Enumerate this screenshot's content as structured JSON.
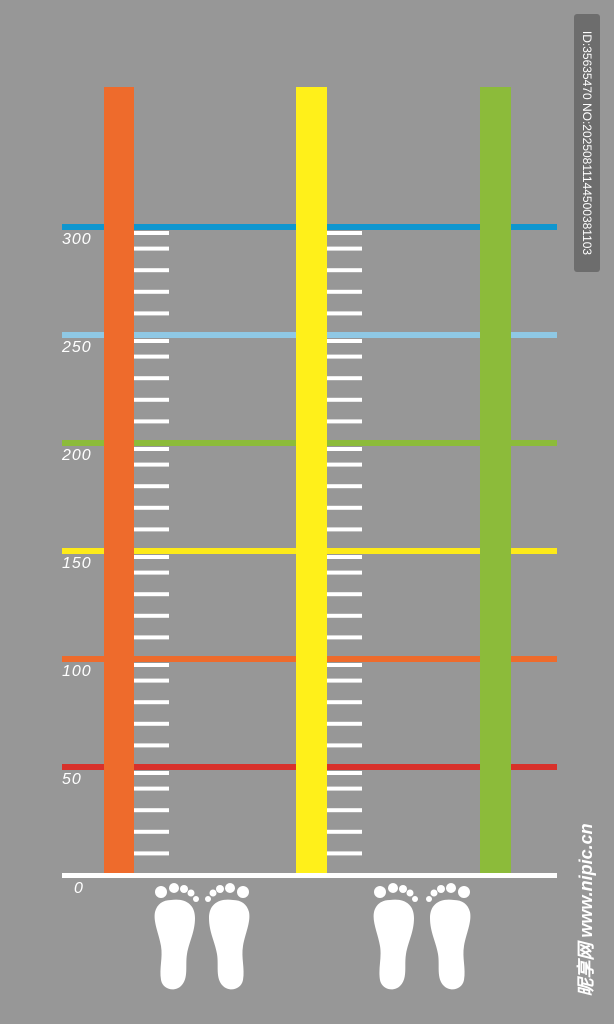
{
  "scale": {
    "max": 350,
    "ruler_top_value": 0,
    "ticks_per_interval": 5,
    "marks": [
      {
        "value": 50,
        "label": "50",
        "color": "#d8312b"
      },
      {
        "value": 100,
        "label": "100",
        "color": "#ee6b2c"
      },
      {
        "value": 150,
        "label": "150",
        "color": "#fdea19"
      },
      {
        "value": 200,
        "label": "200",
        "color": "#8cbb3a"
      },
      {
        "value": 250,
        "label": "250",
        "color": "#8fc8e4"
      },
      {
        "value": 300,
        "label": "300",
        "color": "#0f96cf"
      }
    ],
    "zero_label": "0"
  },
  "columns": [
    {
      "name": "orange-column",
      "color": "#ee6b2c",
      "has_ticks": true
    },
    {
      "name": "yellow-column",
      "color": "#fff01a",
      "has_ticks": true
    },
    {
      "name": "green-column",
      "color": "#8cbb3a",
      "has_ticks": false
    }
  ],
  "footprints": [
    {
      "name": "left-footprints"
    },
    {
      "name": "right-footprints"
    }
  ],
  "colors": {
    "background": "#979797",
    "tick": "#ffffff",
    "footprint": "#ffffff",
    "baseline": "#ffffff"
  },
  "watermark": {
    "id_text": "ID:35635470 NO:20250811144500381103",
    "site_text": "昵享网 www.nipic.cn"
  }
}
